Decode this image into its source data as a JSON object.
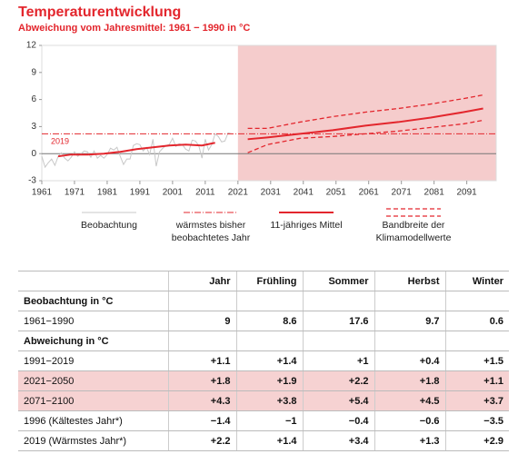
{
  "chart_data": {
    "type": "line",
    "title": "Temperaturentwicklung",
    "subtitle": "Abweichung vom Jahresmittel: 1961 − 1990 in °C",
    "xlim": [
      1961,
      2100
    ],
    "xticks": [
      1961,
      1971,
      1981,
      1991,
      2001,
      2011,
      2021,
      2031,
      2041,
      2051,
      2061,
      2071,
      2081,
      2091
    ],
    "ylim": [
      -3,
      12
    ],
    "yticks": [
      12,
      9,
      6,
      3,
      0,
      -3
    ],
    "projection_start": 2021,
    "series": [
      {
        "name": "Beobachtung",
        "color": "#c8c8c8",
        "x": [
          1961,
          1962,
          1963,
          1964,
          1965,
          1966,
          1967,
          1968,
          1969,
          1970,
          1971,
          1972,
          1973,
          1974,
          1975,
          1976,
          1977,
          1978,
          1979,
          1980,
          1981,
          1982,
          1983,
          1984,
          1985,
          1986,
          1987,
          1988,
          1989,
          1990,
          1991,
          1992,
          1993,
          1994,
          1995,
          1996,
          1997,
          1998,
          1999,
          2000,
          2001,
          2002,
          2003,
          2004,
          2005,
          2006,
          2007,
          2008,
          2009,
          2010,
          2011,
          2012,
          2013,
          2014,
          2015,
          2016,
          2017,
          2018,
          2019
        ],
        "values": [
          -0.3,
          -1.5,
          -1.0,
          -0.6,
          -1.3,
          -0.3,
          0.1,
          -0.5,
          -0.8,
          -0.4,
          0.2,
          -0.3,
          0.0,
          0.3,
          0.2,
          -0.4,
          0.3,
          -0.5,
          -0.2,
          -0.5,
          -0.1,
          0.6,
          0.4,
          0.7,
          -0.3,
          -1.2,
          -0.6,
          -0.6,
          0.9,
          1.1,
          1.0,
          0.3,
          0.7,
          -0.1,
          1.6,
          -1.4,
          0.2,
          0.6,
          0.9,
          1.0,
          1.7,
          0.8,
          1.1,
          1.0,
          0.5,
          0.3,
          1.5,
          1.4,
          0.9,
          -0.5,
          1.6,
          0.4,
          1.0,
          2.2,
          1.9,
          1.3,
          1.4,
          2.3,
          2.2
        ]
      },
      {
        "name": "wärmstes bisher beobachtetes Jahr",
        "color": "#e3262d",
        "value": 2.2,
        "label": "2019"
      },
      {
        "name": "11-jähriges Mittel",
        "color": "#e3262d",
        "x": [
          1966,
          1970,
          1975,
          1980,
          1985,
          1990,
          1995,
          2000,
          2005,
          2010,
          2014,
          2019,
          2024,
          2030,
          2040,
          2050,
          2060,
          2070,
          2080,
          2090,
          2096
        ],
        "values": [
          -0.3,
          -0.1,
          -0.1,
          0.0,
          0.2,
          0.5,
          0.7,
          0.9,
          1.0,
          0.9,
          1.2,
          null,
          1.6,
          1.8,
          2.2,
          2.6,
          3.1,
          3.5,
          4.0,
          4.6,
          5.0
        ]
      },
      {
        "name": "Bandbreite der Klimamodellwerte",
        "color": "#e3262d",
        "x": [
          2024,
          2030,
          2040,
          2050,
          2060,
          2070,
          2080,
          2090,
          2096
        ],
        "upper": [
          2.8,
          2.8,
          3.5,
          4.1,
          4.6,
          5.0,
          5.5,
          6.1,
          6.5
        ],
        "lower": [
          0.1,
          1.0,
          1.7,
          1.9,
          2.2,
          2.5,
          2.9,
          3.3,
          3.7
        ]
      }
    ]
  },
  "table": {
    "header": [
      "Jahr",
      "Frühling",
      "Sommer",
      "Herbst",
      "Winter"
    ],
    "rows": [
      {
        "label": "Beobachtung in °C"
      },
      {
        "label": "1961−1990",
        "cells": [
          "9",
          "8.6",
          "17.6",
          "9.7",
          "0.6"
        ]
      },
      {
        "label": "Abweichung in °C"
      },
      {
        "label": "1991−2019",
        "cells": [
          "+1.1",
          "+1.4",
          "+1",
          "+0.4",
          "+1.5"
        ]
      },
      {
        "label": "2021−2050",
        "cells": [
          "+1.8",
          "+1.9",
          "+2.2",
          "+1.8",
          "+1.1"
        ],
        "shaded": true
      },
      {
        "label": "2071−2100",
        "cells": [
          "+4.3",
          "+3.8",
          "+5.4",
          "+4.5",
          "+3.7"
        ],
        "shaded": true
      },
      {
        "label": "1996 (Kältestes Jahr*)",
        "cells": [
          "−1.4",
          "−1",
          "−0.4",
          "−0.6",
          "−3.5"
        ]
      },
      {
        "label": "2019 (Wärmstes Jahr*)",
        "cells": [
          "+2.2",
          "+1.4",
          "+3.4",
          "+1.3",
          "+2.9"
        ]
      }
    ]
  }
}
